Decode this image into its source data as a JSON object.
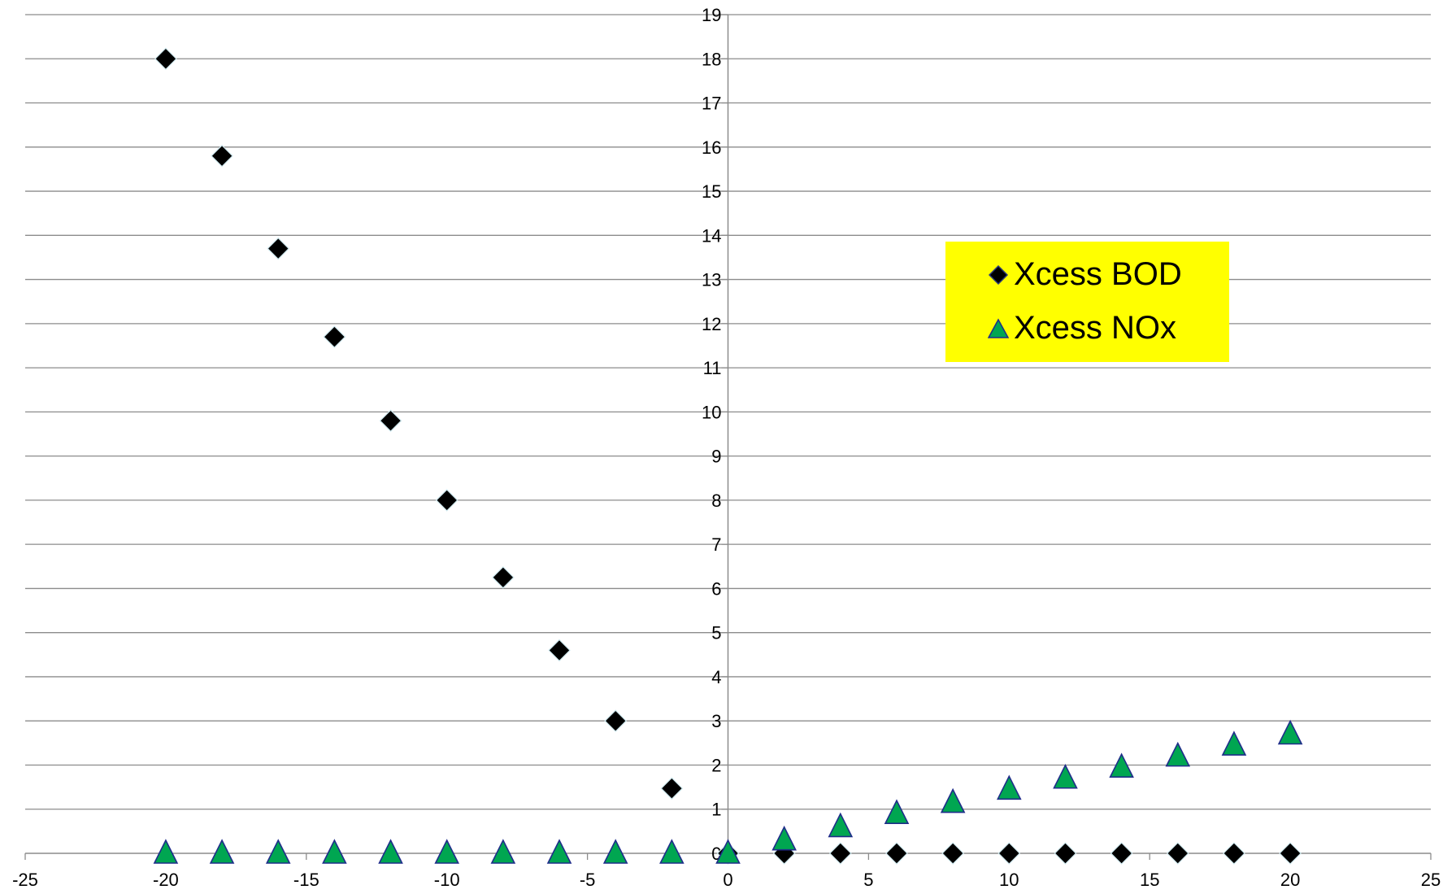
{
  "chart_data": {
    "type": "scatter",
    "title": "",
    "xlabel": "",
    "ylabel": "",
    "xlim": [
      -25,
      25
    ],
    "ylim": [
      0,
      19
    ],
    "x_ticks": [
      "-25",
      "-20",
      "-15",
      "-10",
      "-5",
      "0",
      "5",
      "10",
      "15",
      "20",
      "25"
    ],
    "y_ticks": [
      "0",
      "1",
      "2",
      "3",
      "4",
      "5",
      "6",
      "7",
      "8",
      "9",
      "10",
      "11",
      "12",
      "13",
      "14",
      "15",
      "16",
      "17",
      "18",
      "19"
    ],
    "grid": "horizontal",
    "legend_position": "right",
    "series": [
      {
        "name": "Xcess BOD",
        "marker": "diamond",
        "color": "#000000",
        "x": [
          -20,
          -18,
          -16,
          -14,
          -12,
          -10,
          -8,
          -6,
          -4,
          -2,
          0,
          2,
          4,
          6,
          8,
          10,
          12,
          14,
          16,
          18,
          20
        ],
        "y": [
          18,
          15.8,
          13.7,
          11.7,
          9.8,
          8,
          6.25,
          4.6,
          3,
          1.47,
          0,
          0,
          0,
          0,
          0,
          0,
          0,
          0,
          0,
          0,
          0
        ]
      },
      {
        "name": "Xcess NOx",
        "marker": "triangle",
        "color": "#00a651",
        "x": [
          -20,
          -18,
          -16,
          -14,
          -12,
          -10,
          -8,
          -6,
          -4,
          -2,
          0,
          2,
          4,
          6,
          8,
          10,
          12,
          14,
          16,
          18,
          20
        ],
        "y": [
          0,
          0,
          0,
          0,
          0,
          0,
          0,
          0,
          0,
          0,
          0,
          0.3,
          0.6,
          0.9,
          1.15,
          1.45,
          1.7,
          1.95,
          2.2,
          2.45,
          2.7
        ]
      }
    ]
  }
}
